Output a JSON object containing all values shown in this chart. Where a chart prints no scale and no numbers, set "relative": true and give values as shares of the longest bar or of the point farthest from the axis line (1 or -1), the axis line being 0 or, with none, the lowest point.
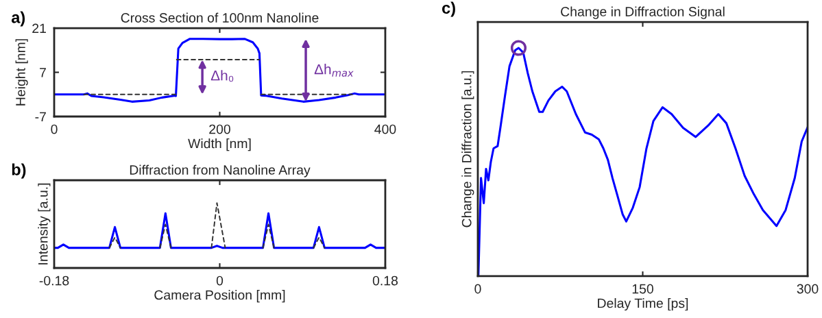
{
  "chart_data": [
    {
      "type": "line",
      "title": "Cross Section of 100nm Nanoline",
      "xlabel": "Width [nm]",
      "ylabel": "Height [nm]",
      "xlim": [
        0,
        400
      ],
      "xticks": [
        0,
        200,
        400
      ],
      "ylim": [
        -7,
        21
      ],
      "yticks": [
        {
          "value": -7,
          "label": "-7"
        },
        7,
        21
      ],
      "series": [
        {
          "color": "#0000ff",
          "x": [
            0,
            36,
            40,
            45,
            60,
            80,
            94,
            115,
            130,
            146,
            147,
            150,
            155,
            164,
            180,
            200,
            215,
            230,
            240,
            246,
            248,
            250,
            255,
            275,
            301,
            320,
            340,
            355,
            363,
            368,
            400
          ],
          "values": [
            0,
            0,
            0.3,
            -0.5,
            -0.9,
            -1.7,
            -2.3,
            -1.9,
            -1.0,
            -0.4,
            -0.5,
            14.5,
            16.3,
            17.6,
            17.6,
            17.5,
            17.5,
            17.6,
            16.5,
            14.5,
            13,
            -0.3,
            -0.4,
            -1.3,
            -2.3,
            -1.8,
            -1.0,
            -0.2,
            0.3,
            0,
            0
          ]
        },
        {
          "color": "#333333",
          "line_style": "dashed",
          "x": [
            36,
            147
          ],
          "values": [
            0,
            0
          ]
        },
        {
          "color": "#333333",
          "line_style": "dashed",
          "x": [
            148,
            248
          ],
          "values": [
            11,
            11
          ]
        },
        {
          "color": "#333333",
          "line_style": "dashed",
          "x": [
            250,
            360
          ],
          "values": [
            0,
            0
          ]
        }
      ],
      "annotations": [
        "a)",
        "Δh₀",
        "Δh$_{max}$"
      ]
    },
    {
      "type": "line",
      "title": "Diffraction from Nanoline Array",
      "xlabel": "Camera Position [mm]",
      "ylabel": "Intensity [a.u.]",
      "relative": true,
      "xlim": [
        -0.18,
        0.18
      ],
      "xticks": [
        {
          "value": -0.18,
          "label": "-0.18"
        },
        0,
        0.18
      ],
      "series": [
        {
          "color": "#333333",
          "line_style": "dashed",
          "x": [
            -0.12,
            -0.114,
            -0.108
          ],
          "values": [
            0.31,
            0.47,
            0.31
          ]
        },
        {
          "color": "#333333",
          "line_style": "dashed",
          "x": [
            -0.065,
            -0.059,
            -0.053
          ],
          "values": [
            0.31,
            0.67,
            0.31
          ]
        },
        {
          "color": "#333333",
          "line_style": "dashed",
          "x": [
            -0.009,
            -0.003,
            0.006
          ],
          "values": [
            0.31,
            1.0,
            0.31
          ]
        },
        {
          "color": "#333333",
          "line_style": "dashed",
          "x": [
            0.047,
            0.053,
            0.059
          ],
          "values": [
            0.31,
            0.67,
            0.31
          ]
        },
        {
          "color": "#333333",
          "line_style": "dashed",
          "x": [
            0.102,
            0.108,
            0.114
          ],
          "values": [
            0.31,
            0.47,
            0.31
          ]
        },
        {
          "color": "#0000ff",
          "x": [
            -0.18,
            -0.176,
            -0.17,
            -0.164,
            -0.12,
            -0.114,
            -0.108,
            -0.065,
            -0.059,
            -0.053,
            -0.009,
            -0.003,
            0.003,
            0.047,
            0.053,
            0.059,
            0.102,
            0.108,
            0.114,
            0.158,
            0.164,
            0.17,
            0.18
          ],
          "values": [
            0.31,
            0.31,
            0.36,
            0.31,
            0.31,
            0.63,
            0.31,
            0.31,
            0.84,
            0.31,
            0.31,
            0.34,
            0.31,
            0.31,
            0.84,
            0.31,
            0.31,
            0.63,
            0.31,
            0.31,
            0.36,
            0.31,
            0.31
          ]
        }
      ],
      "annotations": [
        "b)"
      ]
    },
    {
      "type": "line",
      "title": "Change in Diffraction Signal",
      "xlabel": "Delay Time [ps]",
      "ylabel": "Change in Diffraction [a.u.]",
      "relative": true,
      "xlim": [
        0,
        300
      ],
      "xticks": [
        0,
        150,
        300
      ],
      "series": [
        {
          "color": "#0000ff",
          "x": [
            0.5,
            2.9,
            5.4,
            7.5,
            9.6,
            11.8,
            14.3,
            18.0,
            20.5,
            24.7,
            28.8,
            34.0,
            37.1,
            41.3,
            45.4,
            49.6,
            55.9,
            59.0,
            64.2,
            70.5,
            76.7,
            80.9,
            89.2,
            97.5,
            103.7,
            110.0,
            114.2,
            118.3,
            122.5,
            126.6,
            131.8,
            135.0,
            141.0,
            147.2,
            153.4,
            159.7,
            168.0,
            176.3,
            186.7,
            198.1,
            209.5,
            218.8,
            226.1,
            234.4,
            242.7,
            251.0,
            259.3,
            271.7,
            280.0,
            288.3,
            294.6,
            299.8
          ],
          "values": [
            0,
            0.43,
            0.32,
            0.47,
            0.42,
            0.5,
            0.56,
            0.57,
            0.65,
            0.79,
            0.92,
            0.99,
            1.0,
            0.98,
            0.89,
            0.81,
            0.72,
            0.72,
            0.77,
            0.81,
            0.83,
            0.81,
            0.71,
            0.63,
            0.62,
            0.6,
            0.56,
            0.51,
            0.43,
            0.36,
            0.27,
            0.24,
            0.3,
            0.39,
            0.56,
            0.68,
            0.74,
            0.71,
            0.65,
            0.61,
            0.66,
            0.71,
            0.67,
            0.56,
            0.44,
            0.36,
            0.29,
            0.22,
            0.29,
            0.43,
            0.59,
            0.65
          ]
        },
        {
          "type": "scatter",
          "color": "#7030a0",
          "marker": "circle",
          "x": [
            37.1
          ],
          "values": [
            1.0
          ]
        }
      ],
      "annotations": [
        "c)"
      ]
    }
  ]
}
